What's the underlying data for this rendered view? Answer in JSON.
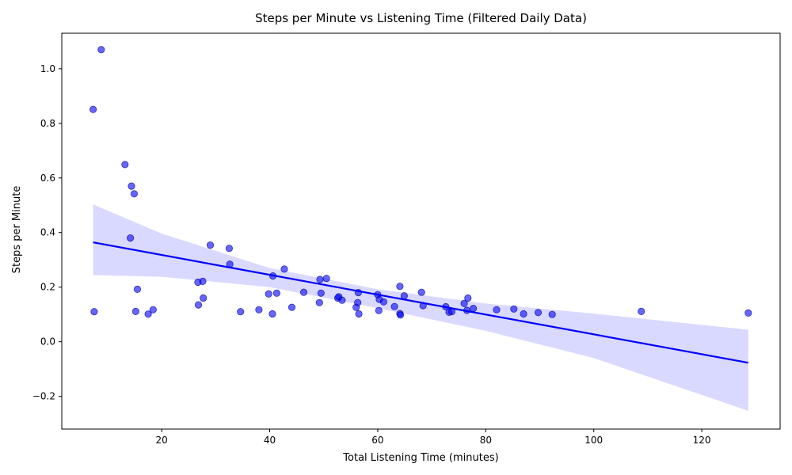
{
  "chart_data": {
    "type": "scatter",
    "title": "Steps per Minute vs Listening Time (Filtered Daily Data)",
    "xlabel": "Total Listening Time (minutes)",
    "ylabel": "Steps per Minute",
    "xlim": [
      1.5,
      134.5
    ],
    "ylim": [
      -0.32,
      1.13
    ],
    "xticks": [
      20,
      40,
      60,
      80,
      100,
      120
    ],
    "yticks": [
      -0.2,
      0.0,
      0.2,
      0.4,
      0.6,
      0.8,
      1.0
    ],
    "xtick_labels": [
      "20",
      "40",
      "60",
      "80",
      "100",
      "120"
    ],
    "ytick_labels": [
      "−0.2",
      "0.0",
      "0.2",
      "0.4",
      "0.6",
      "0.8",
      "1.0"
    ],
    "grid": false,
    "colors": {
      "points": "#0000ff",
      "points_edge": "#00008b",
      "regression_line": "#0000ff",
      "confidence_band": "#d9d9ff"
    },
    "points": [
      {
        "x": 7.3,
        "y": 0.851
      },
      {
        "x": 7.5,
        "y": 0.11
      },
      {
        "x": 8.8,
        "y": 1.07
      },
      {
        "x": 13.2,
        "y": 0.649
      },
      {
        "x": 14.2,
        "y": 0.38
      },
      {
        "x": 14.4,
        "y": 0.57
      },
      {
        "x": 14.9,
        "y": 0.542
      },
      {
        "x": 15.2,
        "y": 0.111
      },
      {
        "x": 15.5,
        "y": 0.192
      },
      {
        "x": 17.5,
        "y": 0.101
      },
      {
        "x": 18.4,
        "y": 0.117
      },
      {
        "x": 26.7,
        "y": 0.218
      },
      {
        "x": 26.8,
        "y": 0.135
      },
      {
        "x": 27.6,
        "y": 0.221
      },
      {
        "x": 27.7,
        "y": 0.16
      },
      {
        "x": 29.0,
        "y": 0.354
      },
      {
        "x": 32.5,
        "y": 0.342
      },
      {
        "x": 32.6,
        "y": 0.284
      },
      {
        "x": 34.6,
        "y": 0.11
      },
      {
        "x": 38.0,
        "y": 0.117
      },
      {
        "x": 39.8,
        "y": 0.175
      },
      {
        "x": 40.5,
        "y": 0.102
      },
      {
        "x": 40.6,
        "y": 0.241
      },
      {
        "x": 41.3,
        "y": 0.178
      },
      {
        "x": 42.7,
        "y": 0.266
      },
      {
        "x": 44.1,
        "y": 0.126
      },
      {
        "x": 46.3,
        "y": 0.181
      },
      {
        "x": 49.2,
        "y": 0.143
      },
      {
        "x": 49.3,
        "y": 0.228
      },
      {
        "x": 49.5,
        "y": 0.178
      },
      {
        "x": 50.5,
        "y": 0.232
      },
      {
        "x": 52.6,
        "y": 0.16
      },
      {
        "x": 52.8,
        "y": 0.165
      },
      {
        "x": 53.4,
        "y": 0.152
      },
      {
        "x": 56.0,
        "y": 0.126
      },
      {
        "x": 56.3,
        "y": 0.143
      },
      {
        "x": 56.4,
        "y": 0.18
      },
      {
        "x": 56.5,
        "y": 0.102
      },
      {
        "x": 60.0,
        "y": 0.172
      },
      {
        "x": 60.2,
        "y": 0.114
      },
      {
        "x": 60.3,
        "y": 0.155
      },
      {
        "x": 61.1,
        "y": 0.146
      },
      {
        "x": 63.1,
        "y": 0.129
      },
      {
        "x": 64.1,
        "y": 0.203
      },
      {
        "x": 64.1,
        "y": 0.103
      },
      {
        "x": 64.2,
        "y": 0.098
      },
      {
        "x": 64.9,
        "y": 0.168
      },
      {
        "x": 68.1,
        "y": 0.181
      },
      {
        "x": 68.4,
        "y": 0.132
      },
      {
        "x": 72.6,
        "y": 0.128
      },
      {
        "x": 73.2,
        "y": 0.108
      },
      {
        "x": 73.7,
        "y": 0.11
      },
      {
        "x": 76.0,
        "y": 0.14
      },
      {
        "x": 76.5,
        "y": 0.115
      },
      {
        "x": 76.7,
        "y": 0.16
      },
      {
        "x": 77.7,
        "y": 0.122
      },
      {
        "x": 82.0,
        "y": 0.117
      },
      {
        "x": 85.2,
        "y": 0.12
      },
      {
        "x": 87.0,
        "y": 0.102
      },
      {
        "x": 89.7,
        "y": 0.107
      },
      {
        "x": 92.3,
        "y": 0.1
      },
      {
        "x": 108.8,
        "y": 0.111
      },
      {
        "x": 128.6,
        "y": 0.105
      }
    ],
    "regression": {
      "x": [
        7.3,
        128.6
      ],
      "y": [
        0.364,
        -0.077
      ]
    },
    "confidence_band": {
      "x": [
        7.3,
        20,
        40,
        60,
        80,
        100,
        128.6
      ],
      "upper": [
        0.503,
        0.396,
        0.27,
        0.192,
        0.14,
        0.103,
        0.044
      ],
      "lower": [
        0.244,
        0.238,
        0.2,
        0.123,
        0.04,
        -0.06,
        -0.253
      ]
    }
  }
}
